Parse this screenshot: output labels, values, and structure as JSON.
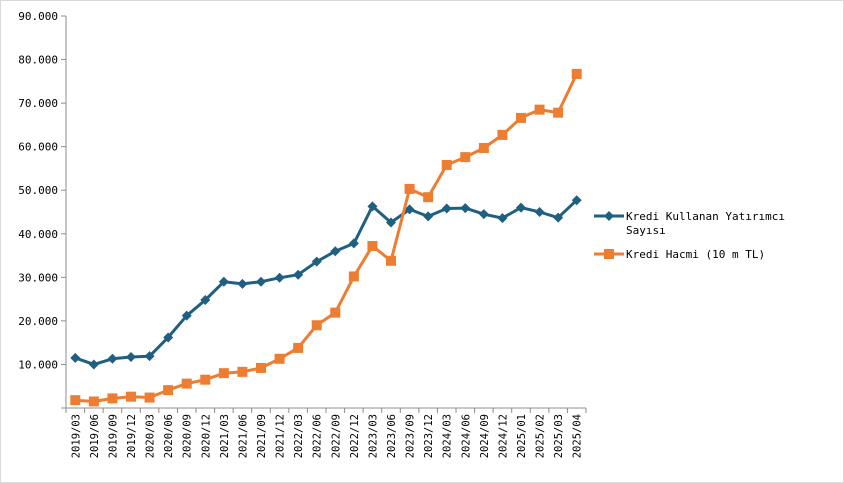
{
  "chart_data": {
    "type": "line",
    "title": "",
    "xlabel": "",
    "ylabel": "",
    "ylim": [
      0,
      90000
    ],
    "ytick_step": 10000,
    "ytick_labels": [
      "",
      "10.000",
      "20.000",
      "30.000",
      "40.000",
      "50.000",
      "60.000",
      "70.000",
      "80.000",
      "90.000"
    ],
    "grid": false,
    "legend_position": "right",
    "categories": [
      "2019/03",
      "2019/06",
      "2019/09",
      "2019/12",
      "2020/03",
      "2020/06",
      "2020/09",
      "2020/12",
      "2021/03",
      "2021/06",
      "2021/09",
      "2021/12",
      "2022/03",
      "2022/06",
      "2022/09",
      "2022/12",
      "2023/03",
      "2023/06",
      "2023/09",
      "2023/12",
      "2024/03",
      "2024/06",
      "2024/09",
      "2024/12",
      "2025/01",
      "2025/02",
      "2025/03",
      "2025/04"
    ],
    "series": [
      {
        "name_lines": [
          "Kredi Kullanan Yatırımcı",
          "Sayısı"
        ],
        "color": "#1f5f7f",
        "marker": "diamond",
        "values": [
          11500,
          10000,
          11300,
          11700,
          11900,
          16200,
          21200,
          24800,
          29000,
          28500,
          29000,
          29900,
          30600,
          33600,
          36000,
          37800,
          46300,
          42600,
          45600,
          44000,
          45800,
          45900,
          44500,
          43600,
          46000,
          45000,
          43700,
          47700
        ]
      },
      {
        "name_lines": [
          "Kredi Hacmi (10 m TL)"
        ],
        "color": "#ed7d31",
        "marker": "square",
        "values": [
          1800,
          1500,
          2200,
          2600,
          2400,
          4100,
          5600,
          6500,
          8000,
          8300,
          9200,
          11300,
          13800,
          19000,
          21900,
          30200,
          37200,
          33800,
          50300,
          48400,
          55800,
          57600,
          59700,
          62700,
          66600,
          68500,
          67800,
          76700
        ]
      }
    ]
  }
}
